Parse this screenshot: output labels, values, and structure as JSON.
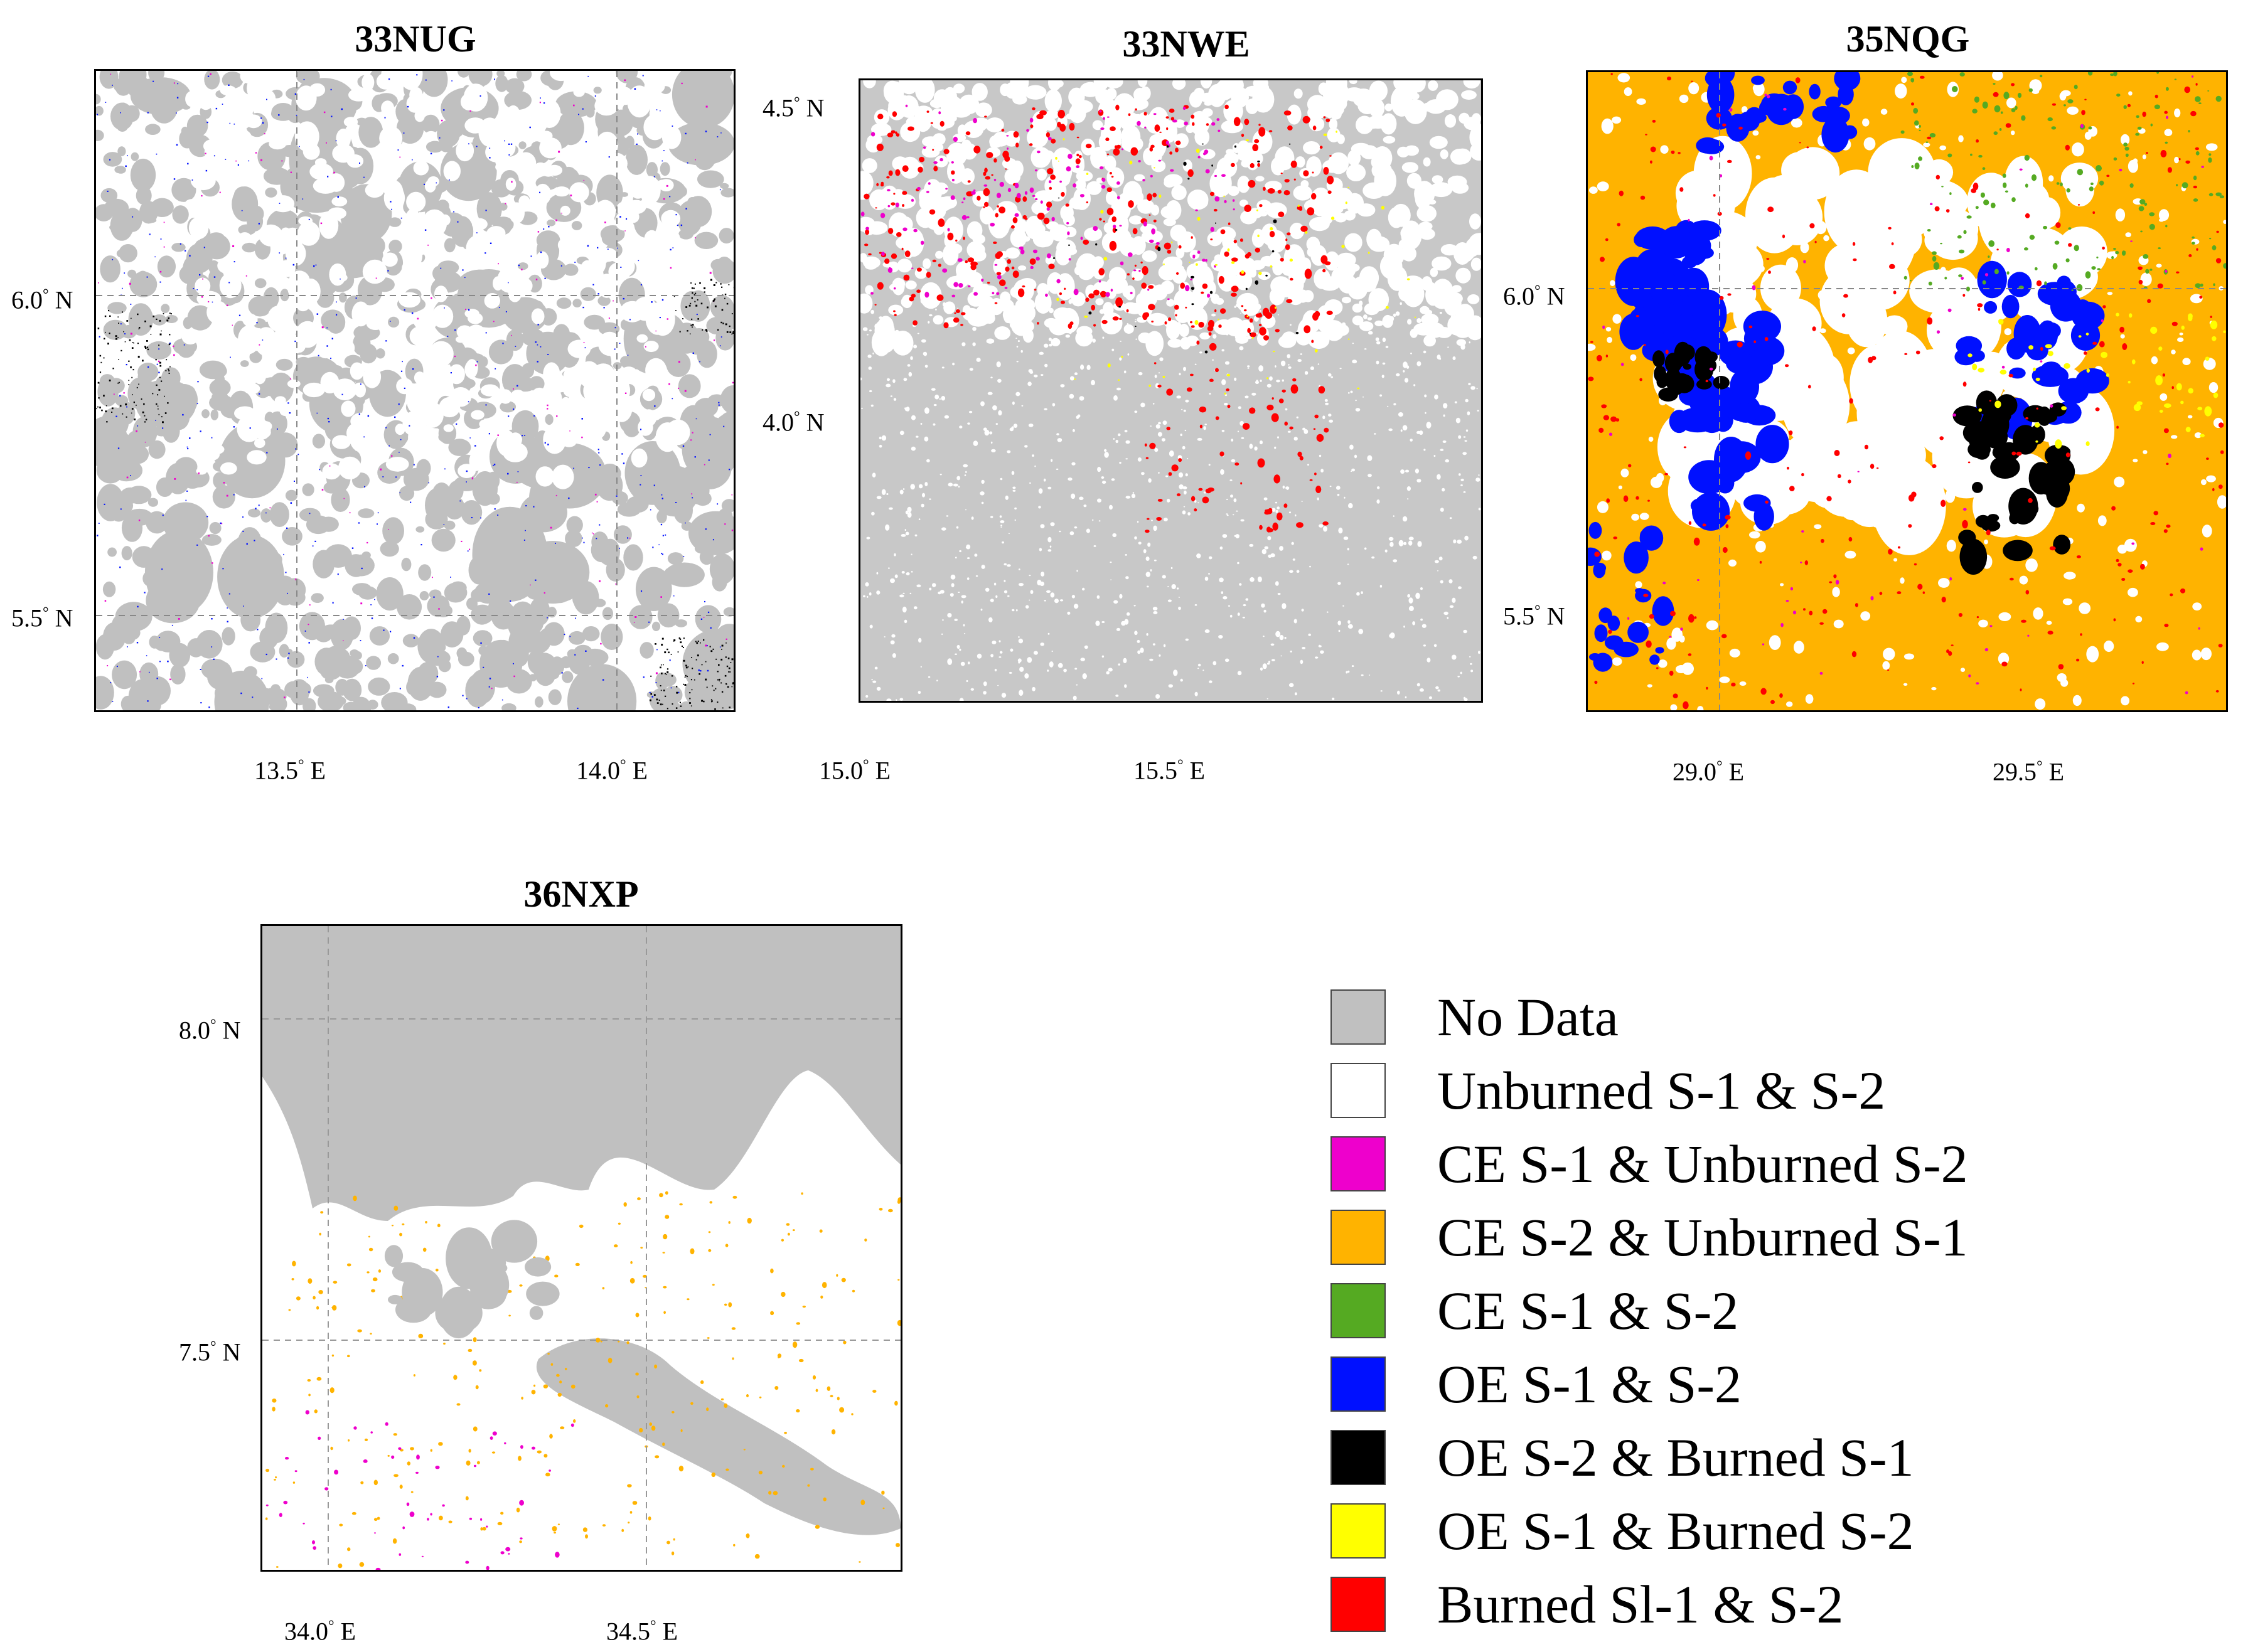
{
  "legend": [
    {
      "label": "No Data",
      "color": "#c0c0c0"
    },
    {
      "label": "Unburned S-1 & S-2",
      "color": "#ffffff"
    },
    {
      "label": "CE S-1 & Unburned S-2",
      "color": "#ee00cc"
    },
    {
      "label": "CE S-2 & Unburned S-1",
      "color": "#ffb300"
    },
    {
      "label": "CE S-1 & S-2",
      "color": "#55aa22"
    },
    {
      "label": "OE S-1 & S-2",
      "color": "#0010ff"
    },
    {
      "label": "OE S-2 & Burned S-1",
      "color": "#000000"
    },
    {
      "label": "OE S-1 & Burned S-2",
      "color": "#ffff00"
    },
    {
      "label": "Burned Sl-1 & S-2",
      "color": "#ff0000"
    }
  ],
  "panels": [
    {
      "title": "33NUG",
      "lat_labels": [
        "6.0",
        "5.5"
      ],
      "lon_labels": [
        "13.5",
        "14.0"
      ],
      "colors": [
        "#ffffff",
        "#c0c0c0",
        "#0010ff",
        "#ee00cc",
        "#000000"
      ]
    },
    {
      "title": "33NWE",
      "lat_labels": [
        "4.5",
        "4.0"
      ],
      "lon_labels": [
        "15.0",
        "15.5"
      ],
      "colors": [
        "#c8c8c8",
        "#ffffff",
        "#ff0000",
        "#ee00cc",
        "#ffff00"
      ]
    },
    {
      "title": "35NQG",
      "lat_labels": [
        "6.0",
        "5.5"
      ],
      "lon_labels": [
        "29.0",
        "29.5"
      ],
      "colors": [
        "#ffb300",
        "#ffffff",
        "#0010ff",
        "#ff0000",
        "#55aa22",
        "#ee00cc",
        "#000000"
      ]
    },
    {
      "title": "36NXP",
      "lat_labels": [
        "8.0",
        "7.5"
      ],
      "lon_labels": [
        "34.0",
        "34.5"
      ],
      "colors": [
        "#c0c0c0",
        "#ffffff",
        "#ffb300",
        "#ee00cc"
      ]
    }
  ],
  "units": {
    "north": "N",
    "east": "E",
    "degree": "°"
  }
}
